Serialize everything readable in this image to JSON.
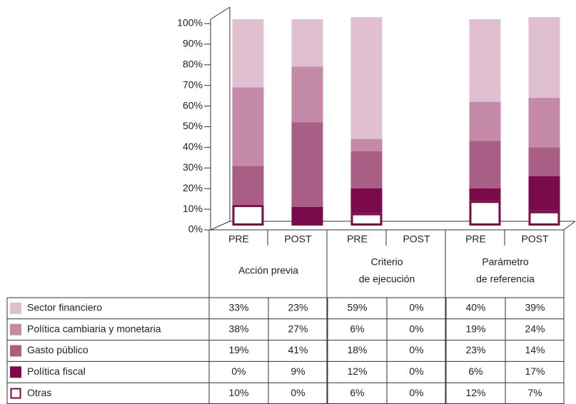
{
  "chart_data": {
    "type": "stacked_bar",
    "categories": [
      "PRE",
      "POST",
      "PRE",
      "POST",
      "PRE",
      "POST"
    ],
    "groups": [
      [
        "Acción previa"
      ],
      [
        "Criterio",
        "de ejecución"
      ],
      [
        "Parámetro",
        "de referencia"
      ]
    ],
    "ylim": [
      0,
      100
    ],
    "yticks": [
      {
        "value": 0,
        "label": "0%"
      },
      {
        "value": 10,
        "label": "10%"
      },
      {
        "value": 20,
        "label": "20%"
      },
      {
        "value": 30,
        "label": "30%"
      },
      {
        "value": 40,
        "label": "40%"
      },
      {
        "value": 50,
        "label": "50%"
      },
      {
        "value": 60,
        "label": "60%"
      },
      {
        "value": 70,
        "label": "70%"
      },
      {
        "value": 80,
        "label": "80%"
      },
      {
        "value": 90,
        "label": "90%"
      },
      {
        "value": 100,
        "label": "100%"
      }
    ],
    "series": [
      {
        "name": "Sector financiero",
        "color": "#e0bfd0",
        "values": [
          33,
          23,
          59,
          0,
          40,
          39
        ],
        "value_labels": [
          "33%",
          "23%",
          "59%",
          "0%",
          "40%",
          "39%"
        ]
      },
      {
        "name": "Política cambiaria y monetaria",
        "color": "#c48aa8",
        "values": [
          38,
          27,
          6,
          0,
          19,
          24
        ],
        "value_labels": [
          "38%",
          "27%",
          "6%",
          "0%",
          "19%",
          "24%"
        ]
      },
      {
        "name": "Gasto público",
        "color": "#a85e85",
        "values": [
          19,
          41,
          18,
          0,
          23,
          14
        ],
        "value_labels": [
          "19%",
          "41%",
          "18%",
          "0%",
          "23%",
          "14%"
        ]
      },
      {
        "name": "Política fiscal",
        "color": "#7a0a4a",
        "values": [
          0,
          9,
          12,
          0,
          6,
          17
        ],
        "value_labels": [
          "0%",
          "9%",
          "12%",
          "0%",
          "6%",
          "17%"
        ]
      },
      {
        "name": "Otras",
        "color": "#ffffff",
        "values": [
          10,
          0,
          6,
          0,
          12,
          7
        ],
        "value_labels": [
          "10%",
          "0%",
          "6%",
          "0%",
          "12%",
          "7%"
        ]
      }
    ]
  }
}
